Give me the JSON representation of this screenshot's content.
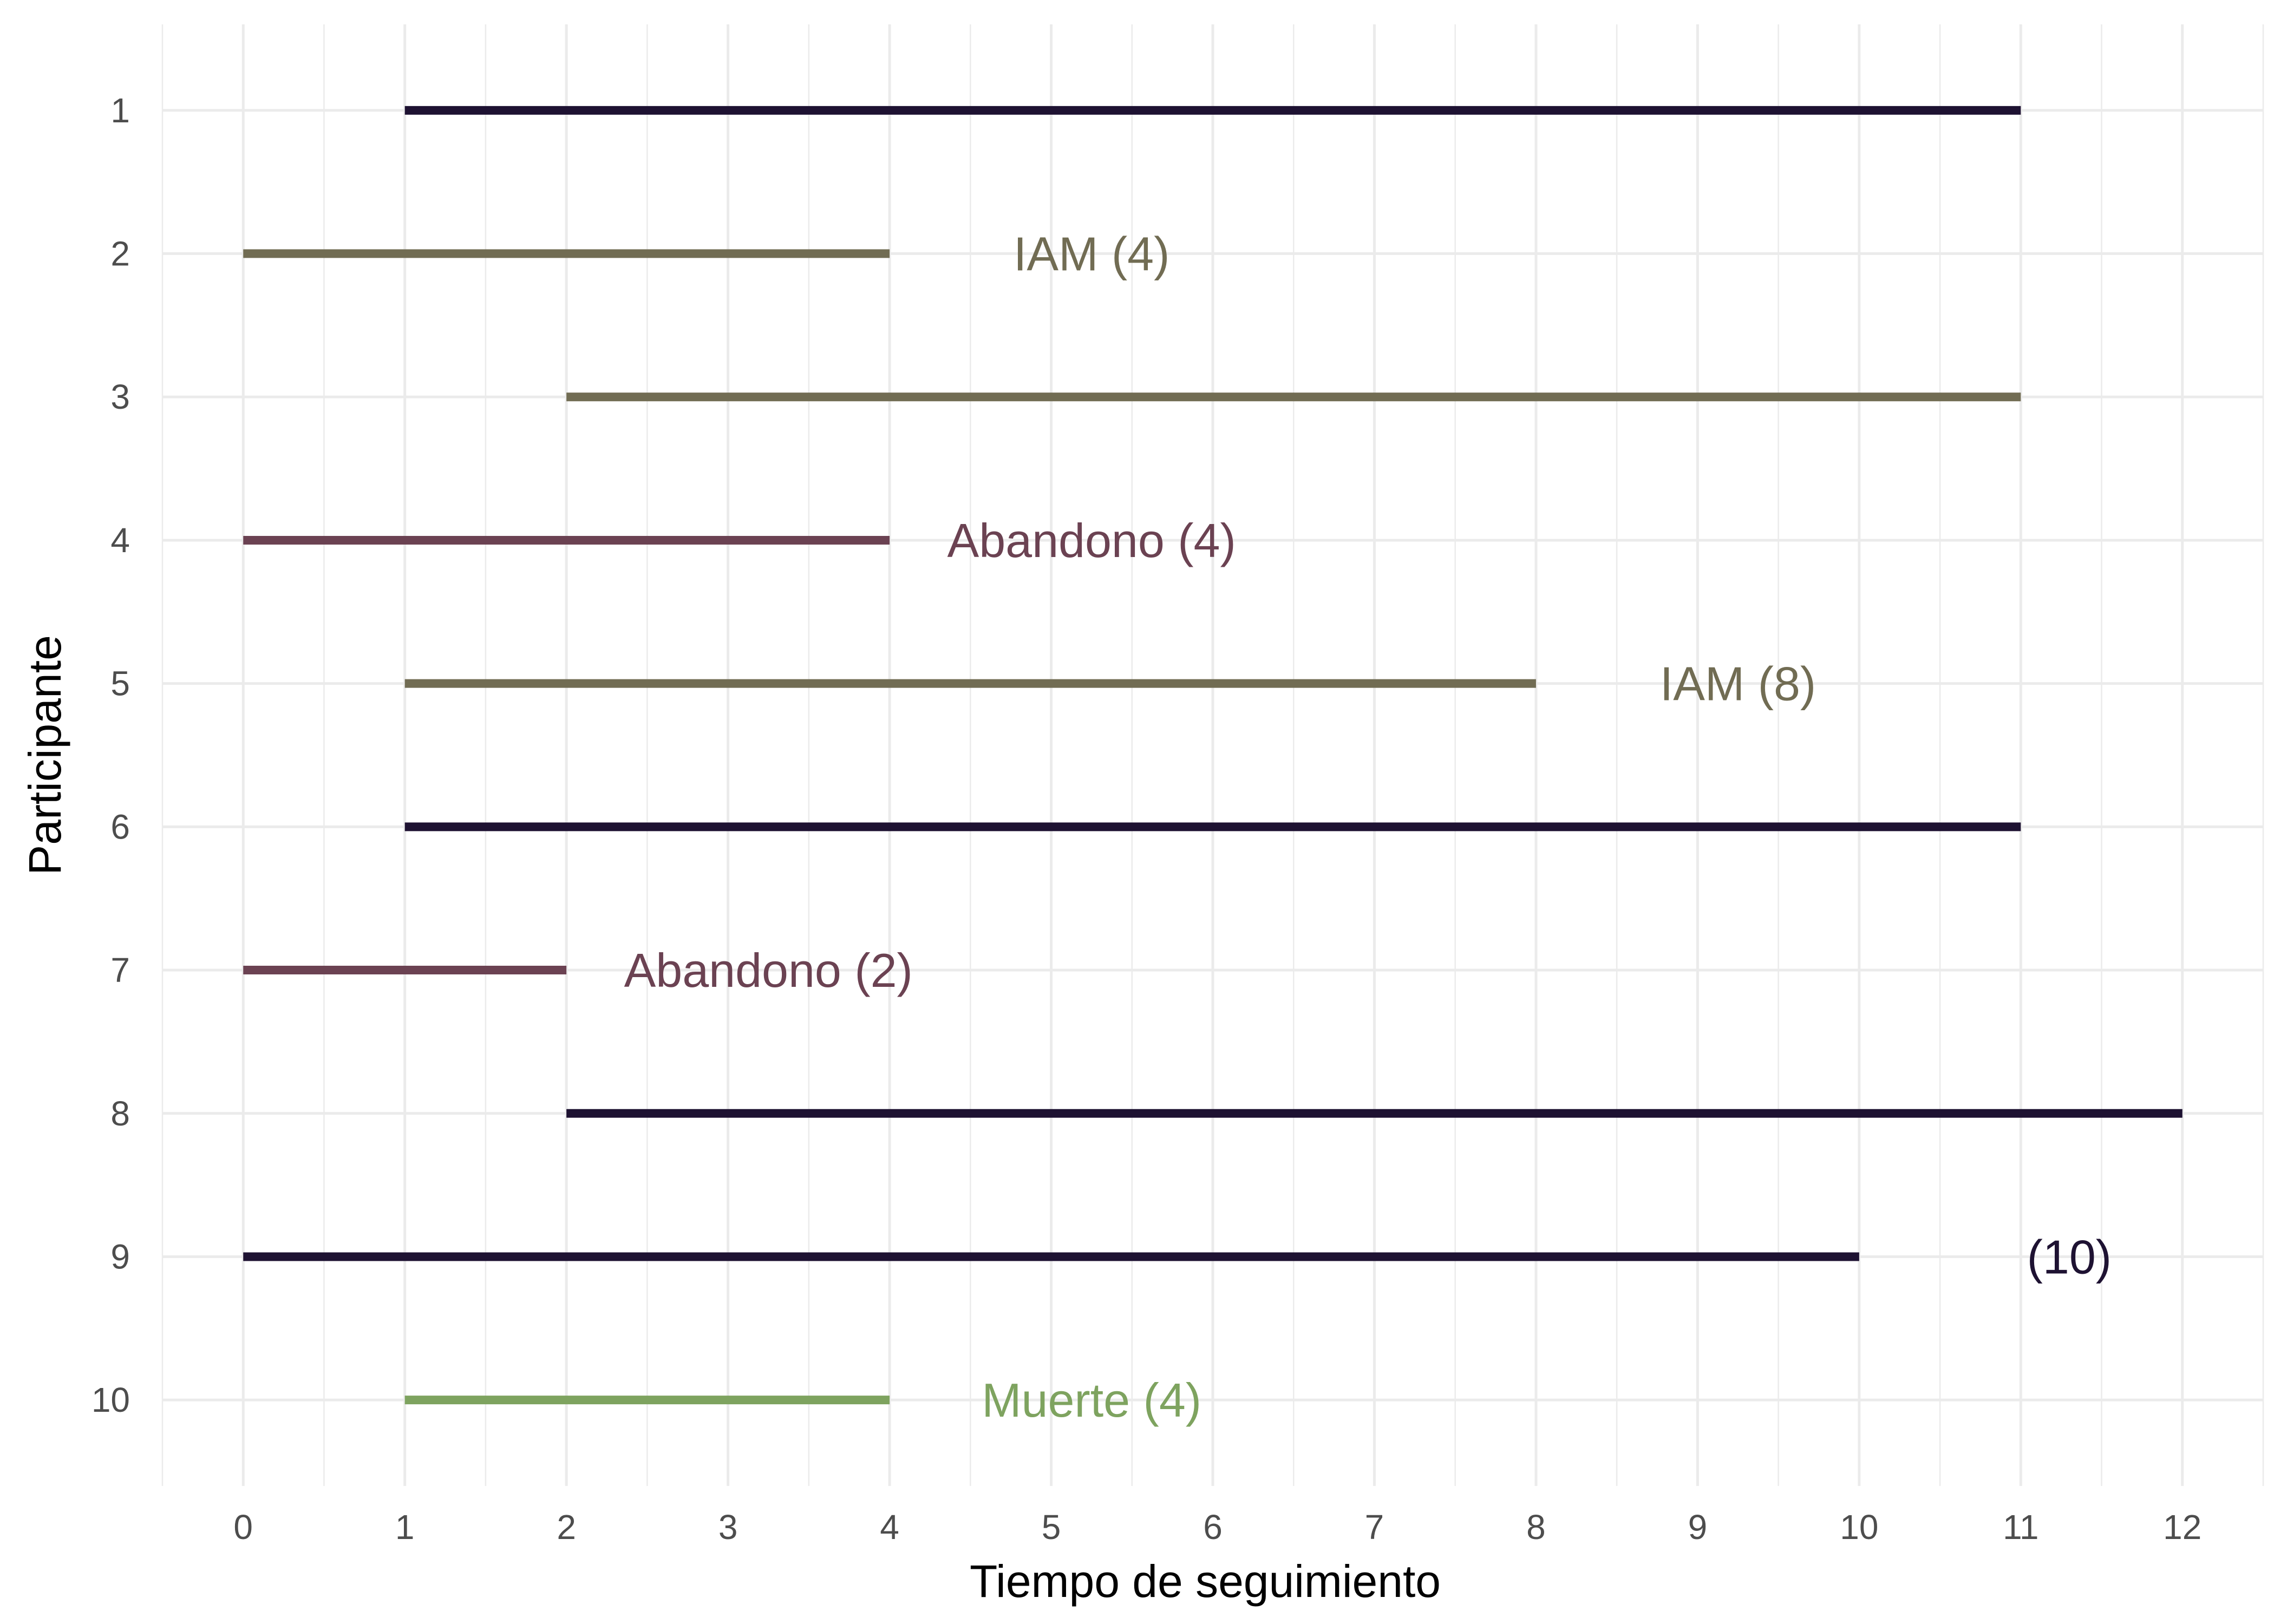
{
  "chart_data": {
    "type": "segment",
    "title": "",
    "xlabel": "Tiempo de seguimiento",
    "ylabel": "Participante",
    "xlim": [
      -0.5,
      12.5
    ],
    "ylim": [
      0.4,
      10.6
    ],
    "x_ticks": [
      "0",
      "1",
      "2",
      "3",
      "4",
      "5",
      "6",
      "7",
      "8",
      "9",
      "10",
      "11",
      "12"
    ],
    "y_ticks": [
      "1",
      "2",
      "3",
      "4",
      "5",
      "6",
      "7",
      "8",
      "9",
      "10"
    ],
    "grid": true,
    "legend": "none",
    "colors": {
      "censored": "#1e1232",
      "iam": "#716c53",
      "abandono": "#6b4252",
      "muerte": "#7ea35f",
      "grid": "#ebebeb",
      "tick_text": "#4d4d4d"
    },
    "segments": [
      {
        "participant": 1,
        "start": 1,
        "end": 11,
        "group": "censored",
        "label": "",
        "label_x": null
      },
      {
        "participant": 2,
        "start": 0,
        "end": 4,
        "group": "iam",
        "label": "IAM (4)",
        "label_x": 5.25
      },
      {
        "participant": 3,
        "start": 2,
        "end": 11,
        "group": "iam",
        "label": "",
        "label_x": null
      },
      {
        "participant": 4,
        "start": 0,
        "end": 4,
        "group": "abandono",
        "label": "Abandono (4)",
        "label_x": 5.25
      },
      {
        "participant": 5,
        "start": 1,
        "end": 8,
        "group": "iam",
        "label": "IAM (8)",
        "label_x": 9.25
      },
      {
        "participant": 6,
        "start": 1,
        "end": 11,
        "group": "censored",
        "label": "",
        "label_x": null
      },
      {
        "participant": 7,
        "start": 0,
        "end": 2,
        "group": "abandono",
        "label": "Abandono (2)",
        "label_x": 3.25
      },
      {
        "participant": 8,
        "start": 2,
        "end": 12,
        "group": "censored",
        "label": "",
        "label_x": null
      },
      {
        "participant": 9,
        "start": 0,
        "end": 10,
        "group": "censored",
        "label": "(10)",
        "label_x": 11.3
      },
      {
        "participant": 10,
        "start": 1,
        "end": 4,
        "group": "muerte",
        "label": "Muerte (4)",
        "label_x": 5.25
      }
    ]
  }
}
